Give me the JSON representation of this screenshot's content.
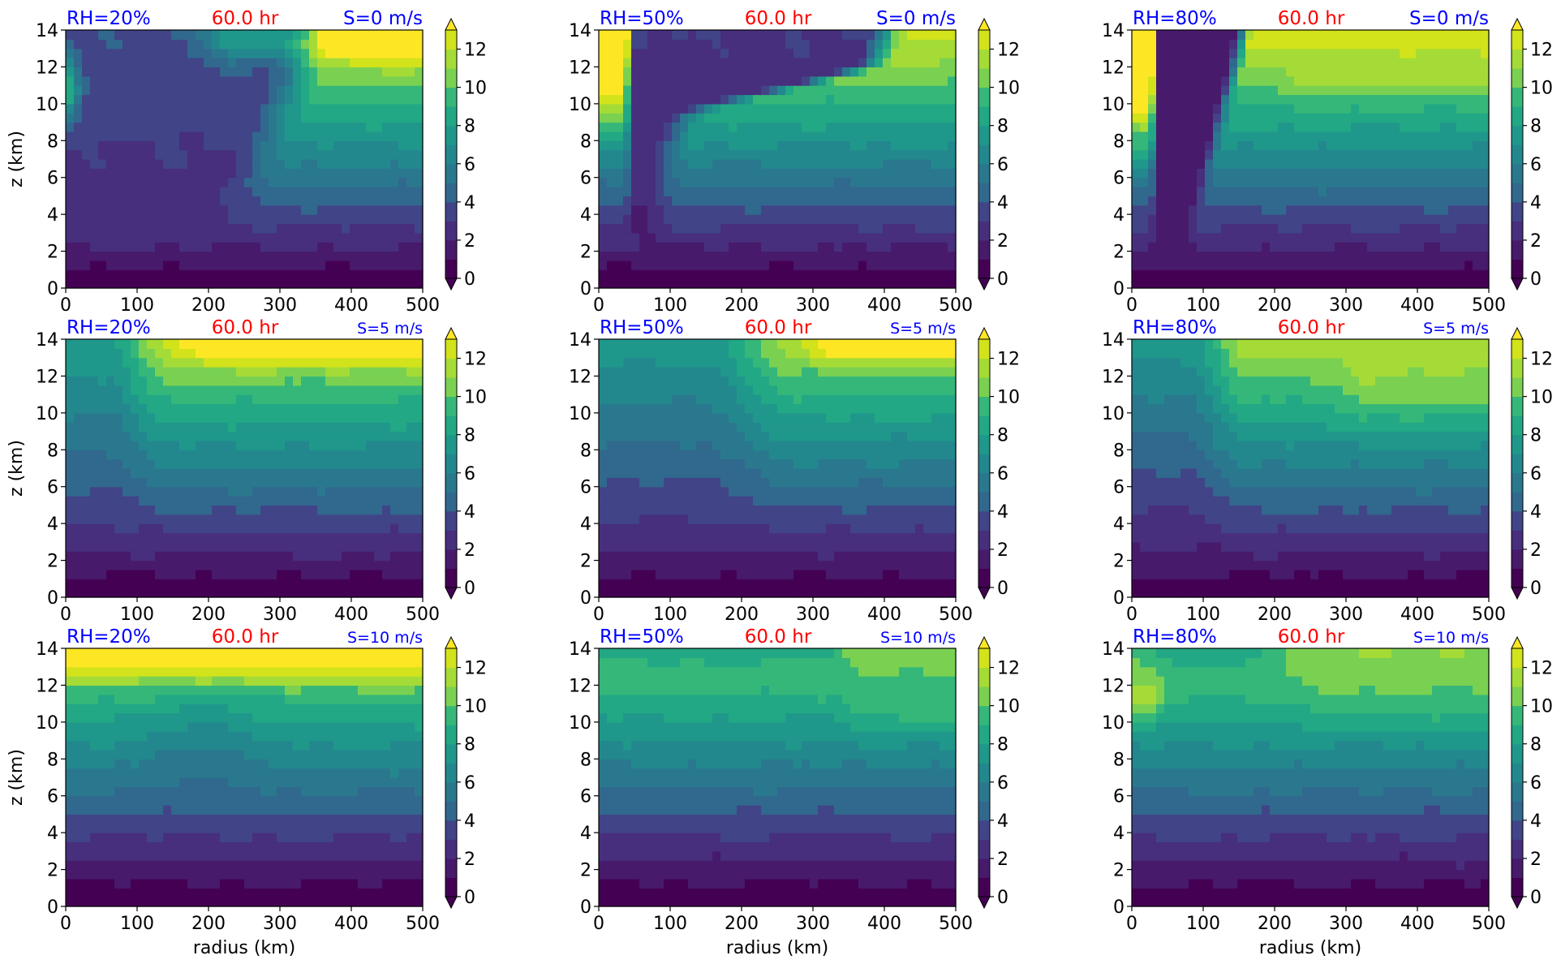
{
  "figure": {
    "common": {
      "xlabel": "radius (km)",
      "ylabel": "z (km)",
      "xticks": [
        0,
        100,
        200,
        300,
        400,
        500
      ],
      "yticks": [
        0,
        2,
        4,
        6,
        8,
        10,
        12,
        14
      ],
      "cbar_ticks": [
        0,
        2,
        4,
        6,
        8,
        10,
        12
      ],
      "colors": {
        "rh_label": "#0000ff",
        "time_label": "#ff0000",
        "shear_label": "#0000ff"
      }
    }
  },
  "chart_data": [
    {
      "type": "heatmap",
      "rh_label": "RH=20%",
      "time_label": "60.0 hr",
      "shear_label": "S=0 m/s",
      "xlim": [
        0,
        500
      ],
      "ylim": [
        0,
        14
      ],
      "clim": [
        0,
        13
      ],
      "cmap": "viridis"
    },
    {
      "type": "heatmap",
      "rh_label": "RH=50%",
      "time_label": "60.0 hr",
      "shear_label": "S=0 m/s",
      "xlim": [
        0,
        500
      ],
      "ylim": [
        0,
        14
      ],
      "clim": [
        0,
        13
      ],
      "cmap": "viridis"
    },
    {
      "type": "heatmap",
      "rh_label": "RH=80%",
      "time_label": "60.0 hr",
      "shear_label": "S=0 m/s",
      "xlim": [
        0,
        500
      ],
      "ylim": [
        0,
        14
      ],
      "clim": [
        0,
        13
      ],
      "cmap": "viridis"
    },
    {
      "type": "heatmap",
      "rh_label": "RH=20%",
      "time_label": "60.0 hr",
      "shear_label": "S=5 m/s",
      "xlim": [
        0,
        500
      ],
      "ylim": [
        0,
        14
      ],
      "clim": [
        0,
        13
      ],
      "cmap": "viridis"
    },
    {
      "type": "heatmap",
      "rh_label": "RH=50%",
      "time_label": "60.0 hr",
      "shear_label": "S=5 m/s",
      "xlim": [
        0,
        500
      ],
      "ylim": [
        0,
        14
      ],
      "clim": [
        0,
        13
      ],
      "cmap": "viridis"
    },
    {
      "type": "heatmap",
      "rh_label": "RH=80%",
      "time_label": "60.0 hr",
      "shear_label": "S=5 m/s",
      "xlim": [
        0,
        500
      ],
      "ylim": [
        0,
        14
      ],
      "clim": [
        0,
        13
      ],
      "cmap": "viridis"
    },
    {
      "type": "heatmap",
      "rh_label": "RH=20%",
      "time_label": "60.0 hr",
      "shear_label": "S=10 m/s",
      "xlim": [
        0,
        500
      ],
      "ylim": [
        0,
        14
      ],
      "clim": [
        0,
        13
      ],
      "cmap": "viridis"
    },
    {
      "type": "heatmap",
      "rh_label": "RH=50%",
      "time_label": "60.0 hr",
      "shear_label": "S=10 m/s",
      "xlim": [
        0,
        500
      ],
      "ylim": [
        0,
        14
      ],
      "clim": [
        0,
        13
      ],
      "cmap": "viridis"
    },
    {
      "type": "heatmap",
      "rh_label": "RH=80%",
      "time_label": "60.0 hr",
      "shear_label": "S=10 m/s",
      "xlim": [
        0,
        500
      ],
      "ylim": [
        0,
        14
      ],
      "clim": [
        0,
        13
      ],
      "cmap": "viridis"
    }
  ]
}
